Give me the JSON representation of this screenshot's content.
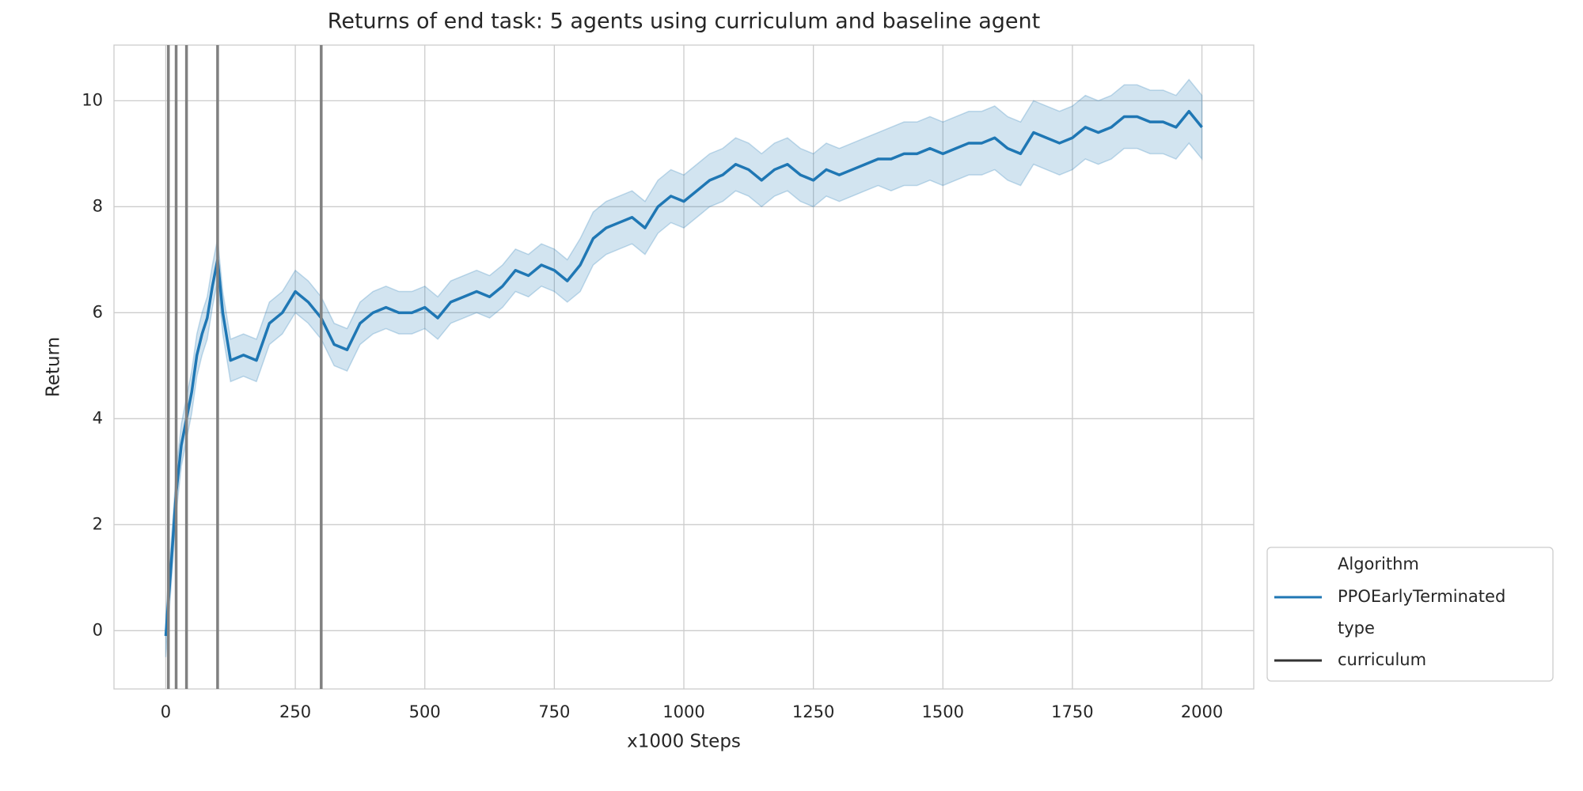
{
  "chart_data": {
    "type": "line",
    "title": "Returns of end task: 5 agents using curriculum and baseline agent",
    "xlabel": "x1000 Steps",
    "ylabel": "Return",
    "x": [
      0,
      10,
      20,
      30,
      40,
      50,
      60,
      70,
      80,
      90,
      100,
      110,
      125,
      150,
      175,
      200,
      225,
      250,
      275,
      300,
      325,
      350,
      375,
      400,
      425,
      450,
      475,
      500,
      525,
      550,
      575,
      600,
      625,
      650,
      675,
      700,
      725,
      750,
      775,
      800,
      825,
      850,
      875,
      900,
      925,
      950,
      975,
      1000,
      1025,
      1050,
      1075,
      1100,
      1125,
      1150,
      1175,
      1200,
      1225,
      1250,
      1275,
      1300,
      1325,
      1350,
      1375,
      1400,
      1425,
      1450,
      1475,
      1500,
      1525,
      1550,
      1575,
      1600,
      1625,
      1650,
      1675,
      1700,
      1725,
      1750,
      1775,
      1800,
      1825,
      1850,
      1875,
      1900,
      1925,
      1950,
      1975,
      2000
    ],
    "series": [
      {
        "name": "PPOEarlyTerminated",
        "color": "#1f77b4",
        "band_color": "#1f77b4",
        "values": [
          -0.1,
          1.2,
          2.6,
          3.5,
          4.0,
          4.5,
          5.2,
          5.6,
          5.9,
          6.5,
          7.0,
          6.0,
          5.1,
          5.2,
          5.1,
          5.8,
          6.0,
          6.4,
          6.2,
          5.9,
          5.4,
          5.3,
          5.8,
          6.0,
          6.1,
          6.0,
          6.0,
          6.1,
          5.9,
          6.2,
          6.3,
          6.4,
          6.3,
          6.5,
          6.8,
          6.7,
          6.9,
          6.8,
          6.6,
          6.9,
          7.4,
          7.6,
          7.7,
          7.8,
          7.6,
          8.0,
          8.2,
          8.1,
          8.3,
          8.5,
          8.6,
          8.8,
          8.7,
          8.5,
          8.7,
          8.8,
          8.6,
          8.5,
          8.7,
          8.6,
          8.7,
          8.8,
          8.9,
          8.9,
          9.0,
          9.0,
          9.1,
          9.0,
          9.1,
          9.2,
          9.2,
          9.3,
          9.1,
          9.0,
          9.4,
          9.3,
          9.2,
          9.3,
          9.5,
          9.4,
          9.5,
          9.7,
          9.7,
          9.6,
          9.6,
          9.5,
          9.8,
          9.5
        ],
        "lower": [
          -0.5,
          0.8,
          2.2,
          3.1,
          3.6,
          4.1,
          4.8,
          5.2,
          5.5,
          6.1,
          6.6,
          5.6,
          4.7,
          4.8,
          4.7,
          5.4,
          5.6,
          6.0,
          5.8,
          5.5,
          5.0,
          4.9,
          5.4,
          5.6,
          5.7,
          5.6,
          5.6,
          5.7,
          5.5,
          5.8,
          5.9,
          6.0,
          5.9,
          6.1,
          6.4,
          6.3,
          6.5,
          6.4,
          6.2,
          6.4,
          6.9,
          7.1,
          7.2,
          7.3,
          7.1,
          7.5,
          7.7,
          7.6,
          7.8,
          8.0,
          8.1,
          8.3,
          8.2,
          8.0,
          8.2,
          8.3,
          8.1,
          8.0,
          8.2,
          8.1,
          8.2,
          8.3,
          8.4,
          8.3,
          8.4,
          8.4,
          8.5,
          8.4,
          8.5,
          8.6,
          8.6,
          8.7,
          8.5,
          8.4,
          8.8,
          8.7,
          8.6,
          8.7,
          8.9,
          8.8,
          8.9,
          9.1,
          9.1,
          9.0,
          9.0,
          8.9,
          9.2,
          8.9
        ],
        "upper": [
          0.3,
          1.6,
          3.0,
          3.9,
          4.4,
          4.9,
          5.6,
          6.0,
          6.3,
          6.9,
          7.4,
          6.4,
          5.5,
          5.6,
          5.5,
          6.2,
          6.4,
          6.8,
          6.6,
          6.3,
          5.8,
          5.7,
          6.2,
          6.4,
          6.5,
          6.4,
          6.4,
          6.5,
          6.3,
          6.6,
          6.7,
          6.8,
          6.7,
          6.9,
          7.2,
          7.1,
          7.3,
          7.2,
          7.0,
          7.4,
          7.9,
          8.1,
          8.2,
          8.3,
          8.1,
          8.5,
          8.7,
          8.6,
          8.8,
          9.0,
          9.1,
          9.3,
          9.2,
          9.0,
          9.2,
          9.3,
          9.1,
          9.0,
          9.2,
          9.1,
          9.2,
          9.3,
          9.4,
          9.5,
          9.6,
          9.6,
          9.7,
          9.6,
          9.7,
          9.8,
          9.8,
          9.9,
          9.7,
          9.6,
          10.0,
          9.9,
          9.8,
          9.9,
          10.1,
          10.0,
          10.1,
          10.3,
          10.3,
          10.2,
          10.2,
          10.1,
          10.4,
          10.1
        ]
      }
    ],
    "vlines": {
      "name": "curriculum",
      "color": "#808080",
      "legend_color": "#333333",
      "x": [
        5,
        20,
        40,
        100,
        300
      ]
    },
    "hue_title": "Algorithm",
    "style_title": "type",
    "xlim": [
      -100,
      2100
    ],
    "ylim": [
      -1.1,
      11.05
    ],
    "xticks": [
      0,
      250,
      500,
      750,
      1000,
      1250,
      1500,
      1750,
      2000
    ],
    "yticks": [
      0,
      2,
      4,
      6,
      8,
      10
    ],
    "grid": true,
    "legend_loc": "lower right outside"
  }
}
